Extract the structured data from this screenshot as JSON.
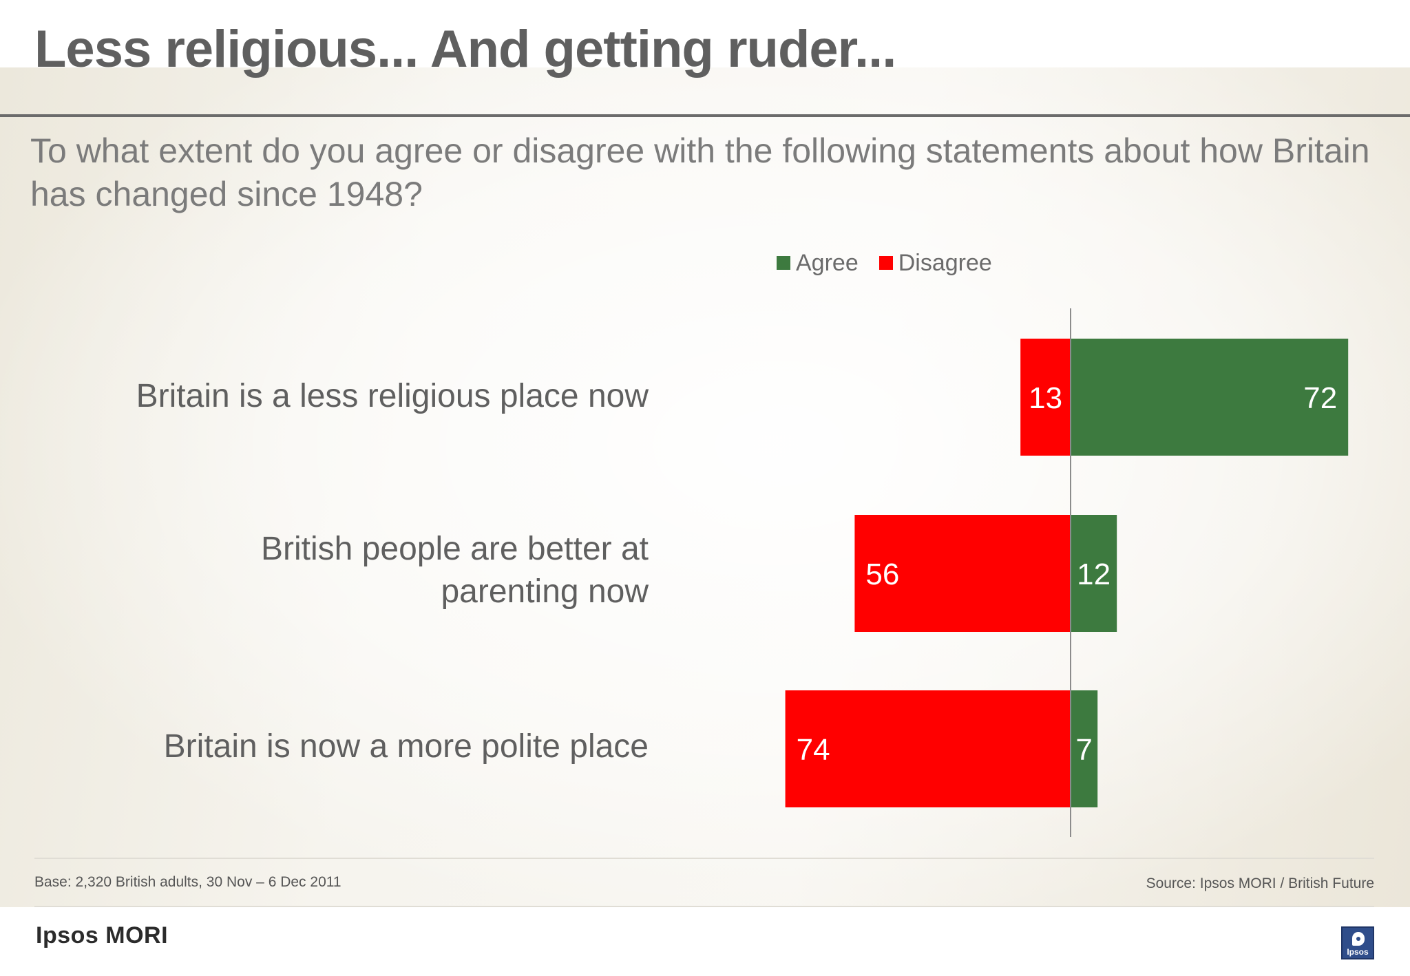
{
  "header": {
    "title": "Less religious... And getting ruder...",
    "question": "To what extent do you agree or disagree with the following statements about how Britain has changed since 1948?"
  },
  "colors": {
    "agree": "#3d7a3f",
    "disagree": "#ff0000",
    "axis": "#8c8c8c",
    "value_text": "#ffffff"
  },
  "chart_data": {
    "type": "bar",
    "orientation": "horizontal",
    "stacking": "diverging",
    "legend_position": "top",
    "grid": false,
    "categories": [
      "Britain is a less religious place now",
      "British people are better at parenting now",
      "Britain is now a more polite place"
    ],
    "series": [
      {
        "name": "Agree",
        "values": [
          72,
          12,
          7
        ]
      },
      {
        "name": "Disagree",
        "values": [
          13,
          56,
          74
        ]
      }
    ],
    "data_labels": true
  },
  "footer": {
    "base": "Base: 2,320 British adults, 30 Nov – 6 Dec 2011",
    "source": "Source: Ipsos MORI / British Future",
    "brand": "Ipsos MORI",
    "logo_text": "Ipsos",
    "logo_icon": "speech-bubble-icon"
  }
}
